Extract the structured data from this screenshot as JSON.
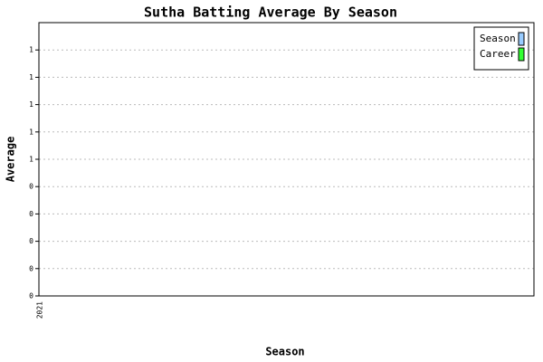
{
  "chart_data": {
    "type": "bar",
    "title": "Sutha Batting Average By Season",
    "x_label": "Season",
    "y_label": "Average",
    "categories": [
      "2021"
    ],
    "series": [
      {
        "name": "Season",
        "color": "#99ccff",
        "values": [
          0
        ]
      },
      {
        "name": "Career",
        "color": "#33ff33",
        "values": [
          0
        ]
      }
    ],
    "ylim": [
      0,
      1
    ],
    "yticks": [
      0,
      {
        "value": 0.1,
        "label": "0"
      },
      {
        "value": 0.2,
        "label": "0"
      },
      {
        "value": 0.3,
        "label": "0"
      },
      {
        "value": 0.4,
        "label": "0"
      },
      {
        "value": 0.5,
        "label": "1"
      },
      {
        "value": 0.6,
        "label": "1"
      },
      {
        "value": 0.7,
        "label": "1"
      },
      {
        "value": 0.8,
        "label": "1"
      },
      {
        "value": 0.9,
        "label": "1"
      }
    ],
    "grid": true,
    "legend": "top-right"
  }
}
